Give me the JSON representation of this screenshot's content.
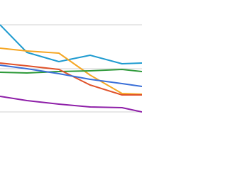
{
  "chart_data": {
    "type": "line",
    "x": [
      0,
      38,
      83,
      127,
      172,
      200
    ],
    "xlim": [
      0,
      200
    ],
    "ylim": [
      0,
      200
    ],
    "yticks": [
      42,
      103,
      165
    ],
    "grid": true,
    "series": [
      {
        "color": "#1f9bd0",
        "values": [
          165,
          126,
          113,
          122,
          110,
          111
        ]
      },
      {
        "color": "#f5a623",
        "values": [
          132,
          128,
          125,
          94,
          68,
          67
        ]
      },
      {
        "color": "#2e9a3a",
        "values": [
          98,
          97,
          99,
          100,
          102,
          99
        ]
      },
      {
        "color": "#e0522a",
        "values": [
          111,
          107,
          102,
          80,
          66,
          66
        ]
      },
      {
        "color": "#3a6fd8",
        "values": [
          108,
          103,
          96,
          88,
          82,
          78
        ]
      },
      {
        "color": "#8e1fa8",
        "values": [
          64,
          58,
          53,
          49,
          48,
          42
        ]
      }
    ]
  }
}
